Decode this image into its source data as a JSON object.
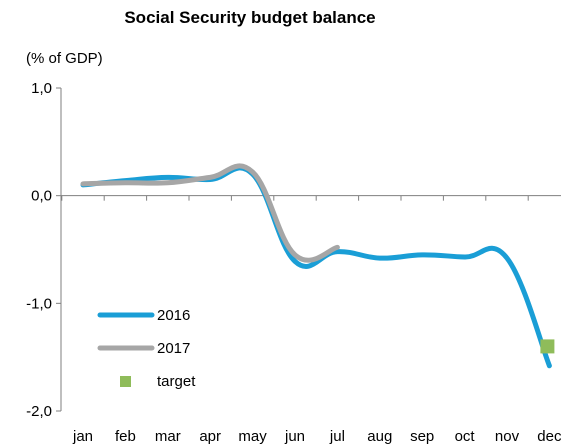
{
  "chart_data": {
    "type": "line",
    "title": "Social Security budget balance",
    "ylabel": "(% of GDP)",
    "xlabel": "",
    "categories": [
      "jan",
      "feb",
      "mar",
      "apr",
      "may",
      "jun",
      "jul",
      "aug",
      "sep",
      "oct",
      "nov",
      "dec"
    ],
    "ylim": [
      -2.0,
      1.0
    ],
    "yticks": [
      1.0,
      0.0,
      -1.0,
      -2.0
    ],
    "ytick_labels": [
      "1,0",
      "0,0",
      "-1,0",
      "-2,0"
    ],
    "grid": false,
    "legend_position": "bottom-left",
    "series": [
      {
        "name": "2016",
        "color": "#1a9ed6",
        "values": [
          0.1,
          0.14,
          0.17,
          0.15,
          0.2,
          -0.61,
          -0.52,
          -0.58,
          -0.55,
          -0.57,
          -0.58,
          -1.58
        ]
      },
      {
        "name": "2017",
        "color": "#a6a6a6",
        "values": [
          0.11,
          0.12,
          0.12,
          0.17,
          0.22,
          -0.55,
          -0.48,
          null,
          null,
          null,
          null,
          null
        ]
      }
    ],
    "markers": [
      {
        "name": "target",
        "color": "#8fbc5a",
        "category": "dec",
        "value": -1.4
      }
    ]
  }
}
